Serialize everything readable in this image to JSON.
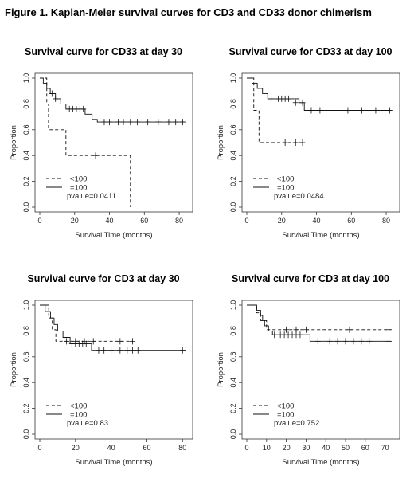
{
  "figure_title": "Figure 1. Kaplan-Meier survival curves for CD3 and CD33 donor chimerism",
  "chart_data": [
    {
      "type": "line",
      "title": "Survival curve for CD33 at day 30",
      "xlabel": "Survival Time (months)",
      "ylabel": "Proportion",
      "xlim": [
        0,
        85
      ],
      "ylim": [
        0,
        1
      ],
      "xticks": [
        "0",
        "20",
        "40",
        "60",
        "80"
      ],
      "yticks": [
        "0.0",
        "0.2",
        "0.4",
        "0.6",
        "0.8",
        "1.0"
      ],
      "legend_position": "bottom-left",
      "annotation": "pvalue=0.0411",
      "series": [
        {
          "name": "<100",
          "style": "dashed",
          "steps": [
            [
              0,
              1.0
            ],
            [
              4,
              0.8
            ],
            [
              5,
              0.6
            ],
            [
              15,
              0.4
            ],
            [
              52,
              0.4
            ],
            [
              52,
              0.0
            ]
          ],
          "censors": [
            [
              32,
              0.4
            ]
          ]
        },
        {
          "name": "=100",
          "style": "solid",
          "steps": [
            [
              0,
              1.0
            ],
            [
              2,
              0.96
            ],
            [
              4,
              0.92
            ],
            [
              6,
              0.88
            ],
            [
              9,
              0.84
            ],
            [
              12,
              0.8
            ],
            [
              15,
              0.76
            ],
            [
              26,
              0.72
            ],
            [
              30,
              0.68
            ],
            [
              33,
              0.66
            ],
            [
              83,
              0.66
            ]
          ],
          "censors": [
            [
              7,
              0.88
            ],
            [
              9,
              0.84
            ],
            [
              17,
              0.76
            ],
            [
              19,
              0.76
            ],
            [
              21,
              0.76
            ],
            [
              23,
              0.76
            ],
            [
              25,
              0.76
            ],
            [
              37,
              0.66
            ],
            [
              40,
              0.66
            ],
            [
              45,
              0.66
            ],
            [
              48,
              0.66
            ],
            [
              52,
              0.66
            ],
            [
              56,
              0.66
            ],
            [
              62,
              0.66
            ],
            [
              68,
              0.66
            ],
            [
              74,
              0.66
            ],
            [
              78,
              0.66
            ],
            [
              82,
              0.66
            ]
          ]
        }
      ]
    },
    {
      "type": "line",
      "title": "Survival curve for CD33 at day 100",
      "xlabel": "Survival Time (months)",
      "ylabel": "Proportion",
      "xlim": [
        0,
        85
      ],
      "ylim": [
        0,
        1
      ],
      "xticks": [
        "0",
        "20",
        "40",
        "60",
        "80"
      ],
      "yticks": [
        "0.0",
        "0.2",
        "0.4",
        "0.6",
        "0.8",
        "1.0"
      ],
      "legend_position": "bottom-left",
      "annotation": "pvalue=0.0484",
      "series": [
        {
          "name": "<100",
          "style": "dashed",
          "steps": [
            [
              0,
              1.0
            ],
            [
              4,
              0.75
            ],
            [
              7,
              0.5
            ],
            [
              33,
              0.5
            ]
          ],
          "censors": [
            [
              22,
              0.5
            ],
            [
              28,
              0.5
            ],
            [
              32,
              0.5
            ]
          ]
        },
        {
          "name": "=100",
          "style": "solid",
          "steps": [
            [
              0,
              1.0
            ],
            [
              3,
              0.96
            ],
            [
              6,
              0.92
            ],
            [
              9,
              0.88
            ],
            [
              12,
              0.84
            ],
            [
              30,
              0.81
            ],
            [
              33,
              0.75
            ],
            [
              83,
              0.75
            ]
          ],
          "censors": [
            [
              14,
              0.84
            ],
            [
              18,
              0.84
            ],
            [
              20,
              0.84
            ],
            [
              22,
              0.84
            ],
            [
              24,
              0.84
            ],
            [
              28,
              0.81
            ],
            [
              32,
              0.81
            ],
            [
              37,
              0.75
            ],
            [
              42,
              0.75
            ],
            [
              50,
              0.75
            ],
            [
              58,
              0.75
            ],
            [
              66,
              0.75
            ],
            [
              74,
              0.75
            ],
            [
              82,
              0.75
            ]
          ]
        }
      ]
    },
    {
      "type": "line",
      "title": "Survival curve for CD3 at day 30",
      "xlabel": "Survival Time (months)",
      "ylabel": "Proportion",
      "xlim": [
        0,
        83
      ],
      "ylim": [
        0,
        1
      ],
      "xticks": [
        "0",
        "20",
        "40",
        "60",
        "80"
      ],
      "yticks": [
        "0.0",
        "0.2",
        "0.4",
        "0.6",
        "0.8",
        "1.0"
      ],
      "legend_position": "bottom-left",
      "annotation": "pvalue=0.83",
      "series": [
        {
          "name": "<100",
          "style": "dashed",
          "steps": [
            [
              0,
              1.0
            ],
            [
              5,
              0.9
            ],
            [
              7,
              0.81
            ],
            [
              9,
              0.72
            ],
            [
              52,
              0.72
            ]
          ],
          "censors": [
            [
              15,
              0.72
            ],
            [
              20,
              0.72
            ],
            [
              25,
              0.72
            ],
            [
              30,
              0.72
            ],
            [
              45,
              0.72
            ],
            [
              52,
              0.72
            ]
          ]
        },
        {
          "name": "=100",
          "style": "solid",
          "steps": [
            [
              0,
              1.0
            ],
            [
              3,
              0.95
            ],
            [
              6,
              0.9
            ],
            [
              8,
              0.85
            ],
            [
              10,
              0.8
            ],
            [
              13,
              0.75
            ],
            [
              17,
              0.7
            ],
            [
              29,
              0.65
            ],
            [
              82,
              0.65
            ]
          ],
          "censors": [
            [
              18,
              0.7
            ],
            [
              20,
              0.7
            ],
            [
              22,
              0.7
            ],
            [
              24,
              0.7
            ],
            [
              26,
              0.7
            ],
            [
              33,
              0.65
            ],
            [
              36,
              0.65
            ],
            [
              40,
              0.65
            ],
            [
              45,
              0.65
            ],
            [
              49,
              0.65
            ],
            [
              52,
              0.65
            ],
            [
              55,
              0.65
            ],
            [
              80,
              0.65
            ]
          ]
        }
      ]
    },
    {
      "type": "line",
      "title": "Survival curve for CD3 at day 100",
      "xlabel": "Survival Time (months)",
      "ylabel": "Proportion",
      "xlim": [
        0,
        75
      ],
      "ylim": [
        0,
        1
      ],
      "xticks": [
        "0",
        "10",
        "20",
        "30",
        "40",
        "50",
        "60",
        "70"
      ],
      "yticks": [
        "0.0",
        "0.2",
        "0.4",
        "0.6",
        "0.8",
        "1.0"
      ],
      "legend_position": "bottom-left",
      "annotation": "pvalue=0.752",
      "series": [
        {
          "name": "<100",
          "style": "dashed",
          "steps": [
            [
              0,
              1.0
            ],
            [
              5,
              0.94
            ],
            [
              7,
              0.88
            ],
            [
              10,
              0.81
            ],
            [
              73,
              0.81
            ]
          ],
          "censors": [
            [
              20,
              0.81
            ],
            [
              25,
              0.81
            ],
            [
              30,
              0.81
            ],
            [
              52,
              0.81
            ],
            [
              72,
              0.81
            ]
          ]
        },
        {
          "name": "=100",
          "style": "solid",
          "steps": [
            [
              0,
              1.0
            ],
            [
              5,
              0.96
            ],
            [
              7,
              0.92
            ],
            [
              8,
              0.88
            ],
            [
              9,
              0.84
            ],
            [
              11,
              0.8
            ],
            [
              13,
              0.77
            ],
            [
              32,
              0.72
            ],
            [
              73,
              0.72
            ]
          ],
          "censors": [
            [
              14,
              0.77
            ],
            [
              17,
              0.77
            ],
            [
              19,
              0.77
            ],
            [
              21,
              0.77
            ],
            [
              23,
              0.77
            ],
            [
              25,
              0.77
            ],
            [
              27,
              0.77
            ],
            [
              36,
              0.72
            ],
            [
              42,
              0.72
            ],
            [
              46,
              0.72
            ],
            [
              50,
              0.72
            ],
            [
              54,
              0.72
            ],
            [
              58,
              0.72
            ],
            [
              62,
              0.72
            ],
            [
              72,
              0.72
            ]
          ]
        }
      ]
    }
  ]
}
